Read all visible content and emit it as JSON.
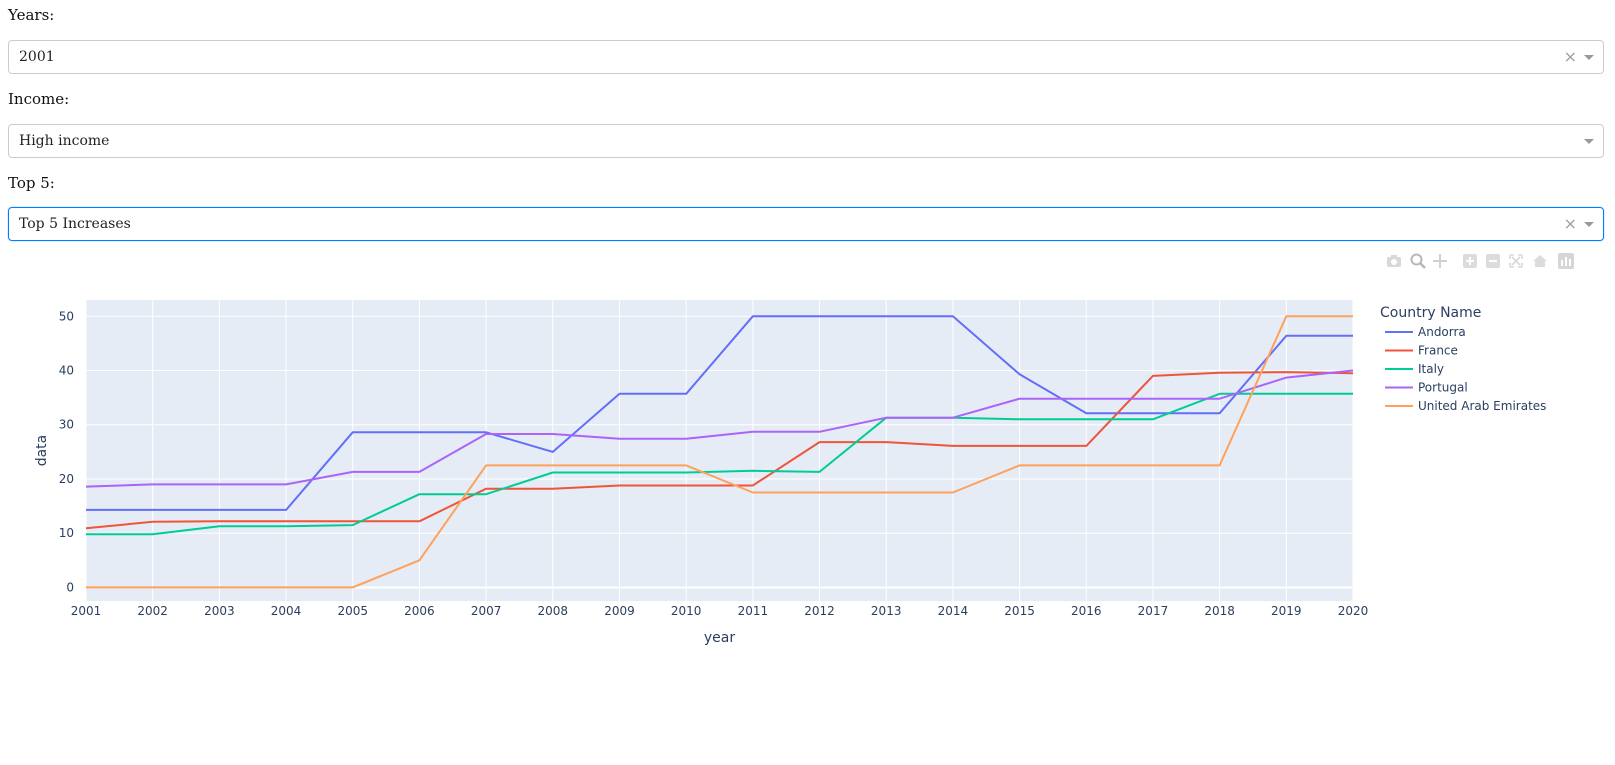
{
  "filters": {
    "years": {
      "label": "Years:",
      "value": "2001",
      "clear": "×"
    },
    "income": {
      "label": "Income:",
      "value": "High income"
    },
    "top5": {
      "label": "Top 5:",
      "value": "Top 5 Increases",
      "clear": "×"
    }
  },
  "modebar_icons": [
    "camera-icon",
    "zoom-icon",
    "pan-icon",
    "zoom-in-icon",
    "zoom-out-icon",
    "autoscale-icon",
    "reset-axes-icon",
    "plotly-logo-icon"
  ],
  "chart_data": {
    "type": "line",
    "xlabel": "year",
    "ylabel": "data",
    "legend_title": "Country Name",
    "legend_position": "right",
    "grid": true,
    "xlim": [
      2001,
      2020
    ],
    "ylim": [
      -2.5,
      53
    ],
    "x_ticks": [
      2001,
      2002,
      2003,
      2004,
      2005,
      2006,
      2007,
      2008,
      2009,
      2010,
      2011,
      2012,
      2013,
      2014,
      2015,
      2016,
      2017,
      2018,
      2019,
      2020
    ],
    "y_ticks": [
      0,
      10,
      20,
      30,
      40,
      50
    ],
    "x": [
      2001,
      2002,
      2003,
      2004,
      2005,
      2006,
      2007,
      2008,
      2009,
      2010,
      2011,
      2012,
      2013,
      2014,
      2015,
      2016,
      2017,
      2018,
      2019,
      2020
    ],
    "series": [
      {
        "name": "Andorra",
        "color": "#636efa",
        "values": [
          14.3,
          14.3,
          14.3,
          14.3,
          28.6,
          28.6,
          28.6,
          25.0,
          35.7,
          35.7,
          50.0,
          50.0,
          50.0,
          50.0,
          39.3,
          32.1,
          32.1,
          32.1,
          46.4,
          46.4
        ]
      },
      {
        "name": "France",
        "color": "#ef553b",
        "values": [
          10.9,
          12.1,
          12.2,
          12.2,
          12.2,
          12.2,
          18.2,
          18.2,
          18.8,
          18.8,
          18.8,
          26.8,
          26.8,
          26.1,
          26.1,
          26.1,
          39.0,
          39.6,
          39.7,
          39.5
        ]
      },
      {
        "name": "Italy",
        "color": "#00cc96",
        "values": [
          9.8,
          9.8,
          11.3,
          11.3,
          11.5,
          17.2,
          17.2,
          21.2,
          21.2,
          21.2,
          21.5,
          21.3,
          31.3,
          31.3,
          31.0,
          31.0,
          31.0,
          35.7,
          35.7,
          35.7
        ]
      },
      {
        "name": "Portugal",
        "color": "#ab63fa",
        "values": [
          18.6,
          19.0,
          19.0,
          19.0,
          21.3,
          21.3,
          28.3,
          28.3,
          27.4,
          27.4,
          28.7,
          28.7,
          31.3,
          31.3,
          34.8,
          34.8,
          34.8,
          34.8,
          38.7,
          40.0
        ]
      },
      {
        "name": "United Arab Emirates",
        "color": "#ffa15a",
        "values": [
          0,
          0,
          0,
          0,
          0,
          5.0,
          22.5,
          22.5,
          22.5,
          22.5,
          17.5,
          17.5,
          17.5,
          17.5,
          22.5,
          22.5,
          22.5,
          22.5,
          50.0,
          50.0
        ]
      }
    ]
  }
}
